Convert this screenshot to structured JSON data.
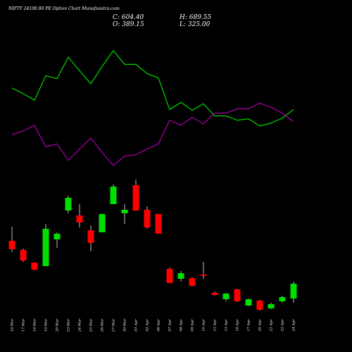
{
  "chart_data": {
    "type": "candlestick",
    "title": "NIFTY 24100.00 PE Option Chart Munafasutra.com",
    "info": {
      "close": "C: 604.40",
      "open": "O: 389.15",
      "high": "H: 689.55",
      "low": "L: 325.00"
    },
    "categories": [
      "16 Mar",
      "17 Mar",
      "18 Mar",
      "19 Mar",
      "20 Mar",
      "23 Mar",
      "24 Mar",
      "25 Mar",
      "26 Mar",
      "27 Mar",
      "30 Mar",
      "01 Apr",
      "02 Apr",
      "06 Apr",
      "07 Apr",
      "08 Apr",
      "09 Apr",
      "10 Apr",
      "13 Apr",
      "15 Apr",
      "16 Apr",
      "17 Apr",
      "20 Apr",
      "21 Apr",
      "22 Apr",
      "24 Apr"
    ],
    "open": [
      158,
      145,
      127,
      122,
      160,
      201,
      194,
      173,
      170,
      210,
      197,
      237,
      202,
      196,
      118,
      104,
      105,
      110,
      84,
      75,
      89,
      66,
      73,
      62,
      72,
      76
    ],
    "high": [
      178,
      147,
      127,
      182,
      170,
      222,
      210,
      180,
      196,
      238,
      210,
      245,
      207,
      196,
      120,
      115,
      106,
      128,
      86,
      84,
      90,
      76,
      74,
      70,
      80,
      100
    ],
    "low": [
      142,
      128,
      116,
      122,
      148,
      197,
      177,
      143,
      170,
      210,
      182,
      201,
      175,
      168,
      98,
      100,
      93,
      104,
      80,
      72,
      71,
      65,
      59,
      61,
      70,
      70
    ],
    "close": [
      146,
      130,
      117,
      175,
      168,
      219,
      184,
      155,
      196,
      235,
      202,
      201,
      177,
      168,
      98,
      112,
      94,
      108,
      81,
      83,
      72,
      75,
      60,
      68,
      78,
      97
    ],
    "up_color": "#00e000",
    "down_color": "#ff0000",
    "series": [
      {
        "color": "#00dd00",
        "values": [
          375,
          367,
          358,
          392,
          388,
          418,
          399,
          381,
          405,
          427,
          408,
          408,
          395,
          389,
          345,
          355,
          344,
          353,
          336,
          336,
          330,
          332,
          322,
          326,
          333,
          345
        ]
      },
      {
        "color": "#aa00aa",
        "values": [
          310,
          315,
          323,
          293,
          297,
          274,
          290,
          305,
          285,
          267,
          280,
          282,
          290,
          297,
          330,
          323,
          334,
          325,
          340,
          340,
          346,
          346,
          354,
          348,
          340,
          328
        ]
      }
    ]
  }
}
